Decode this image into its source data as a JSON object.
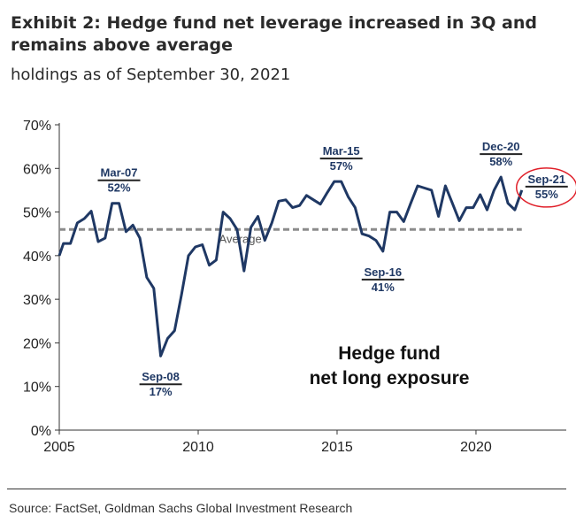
{
  "header": {
    "title": "Exhibit 2: Hedge fund net leverage increased in 3Q and remains above average",
    "subtitle": "holdings as of September 30, 2021"
  },
  "footer": {
    "source": "Source: FactSet, Goldman Sachs Global Investment Research"
  },
  "colors": {
    "line": "#1f3864",
    "average": "#8c8c8c",
    "highlight_circle": "#e0202a",
    "axis": "#333333"
  },
  "chart_data": {
    "type": "line",
    "title": "",
    "xlabel": "",
    "ylabel": "",
    "xlim": [
      2005,
      2023.25
    ],
    "ylim": [
      0,
      70
    ],
    "xticks": [
      2005,
      2010,
      2015,
      2020
    ],
    "xtick_labels": [
      "2005",
      "2010",
      "2015",
      "2020"
    ],
    "yticks": [
      0,
      10,
      20,
      30,
      40,
      50,
      60,
      70
    ],
    "ytick_labels": [
      "0%",
      "10%",
      "20%",
      "30%",
      "40%",
      "50%",
      "60%",
      "70%"
    ],
    "grid": false,
    "legend": "none",
    "in_chart_text": "Hedge fund\nnet long exposure",
    "series": [
      {
        "values": [
          [
            2005.0,
            40
          ],
          [
            2005.15,
            42.8
          ],
          [
            2005.4,
            42.8
          ],
          [
            2005.65,
            47.5
          ],
          [
            2005.9,
            48.5
          ],
          [
            2006.15,
            50.2
          ],
          [
            2006.4,
            43.2
          ],
          [
            2006.65,
            44
          ],
          [
            2006.9,
            52
          ],
          [
            2007.15,
            52
          ],
          [
            2007.4,
            45.5
          ],
          [
            2007.65,
            47
          ],
          [
            2007.9,
            44
          ],
          [
            2008.15,
            35
          ],
          [
            2008.4,
            32.5
          ],
          [
            2008.65,
            17
          ],
          [
            2008.9,
            21
          ],
          [
            2009.15,
            22.8
          ],
          [
            2009.4,
            31
          ],
          [
            2009.65,
            40
          ],
          [
            2009.9,
            42
          ],
          [
            2010.15,
            42.5
          ],
          [
            2010.4,
            37.8
          ],
          [
            2010.65,
            39
          ],
          [
            2010.9,
            50
          ],
          [
            2011.15,
            48.5
          ],
          [
            2011.4,
            46
          ],
          [
            2011.65,
            36.5
          ],
          [
            2011.9,
            46.5
          ],
          [
            2012.15,
            49
          ],
          [
            2012.4,
            43.5
          ],
          [
            2012.65,
            47.5
          ],
          [
            2012.9,
            52.5
          ],
          [
            2013.15,
            52.8
          ],
          [
            2013.4,
            51
          ],
          [
            2013.65,
            51.5
          ],
          [
            2013.9,
            53.8
          ],
          [
            2014.15,
            52.8
          ],
          [
            2014.4,
            51.8
          ],
          [
            2014.65,
            54.5
          ],
          [
            2014.9,
            57
          ],
          [
            2015.15,
            57
          ],
          [
            2015.4,
            53.5
          ],
          [
            2015.65,
            51
          ],
          [
            2015.9,
            45
          ],
          [
            2016.15,
            44.5
          ],
          [
            2016.4,
            43.5
          ],
          [
            2016.65,
            41
          ],
          [
            2016.9,
            50
          ],
          [
            2017.15,
            50
          ],
          [
            2017.4,
            47.8
          ],
          [
            2017.65,
            52
          ],
          [
            2017.9,
            56
          ],
          [
            2018.15,
            55.5
          ],
          [
            2018.4,
            55
          ],
          [
            2018.65,
            49
          ],
          [
            2018.9,
            56
          ],
          [
            2019.15,
            52
          ],
          [
            2019.4,
            48
          ],
          [
            2019.65,
            51
          ],
          [
            2019.9,
            51
          ],
          [
            2020.15,
            54
          ],
          [
            2020.4,
            50.5
          ],
          [
            2020.65,
            55
          ],
          [
            2020.9,
            58
          ],
          [
            2021.15,
            52
          ],
          [
            2021.4,
            50.5
          ],
          [
            2021.65,
            55
          ]
        ]
      },
      {
        "name": "Average",
        "values": [
          [
            2005.0,
            46
          ],
          [
            2021.65,
            46
          ]
        ]
      }
    ],
    "annotations": [
      {
        "date": "Mar-07",
        "value": "52%",
        "x": 2007.15,
        "y": 52,
        "position": "above"
      },
      {
        "date": "Sep-08",
        "value": "17%",
        "x": 2008.65,
        "y": 17,
        "position": "below"
      },
      {
        "date": "Mar-15",
        "value": "57%",
        "x": 2015.15,
        "y": 57,
        "position": "above"
      },
      {
        "date": "Sep-16",
        "value": "41%",
        "x": 2016.65,
        "y": 41,
        "position": "below"
      },
      {
        "date": "Dec-20",
        "value": "58%",
        "x": 2020.9,
        "y": 58,
        "position": "above"
      },
      {
        "date": "Sep-21",
        "value": "55%",
        "x": 2021.65,
        "y": 55,
        "position": "right",
        "circled": true
      }
    ]
  }
}
